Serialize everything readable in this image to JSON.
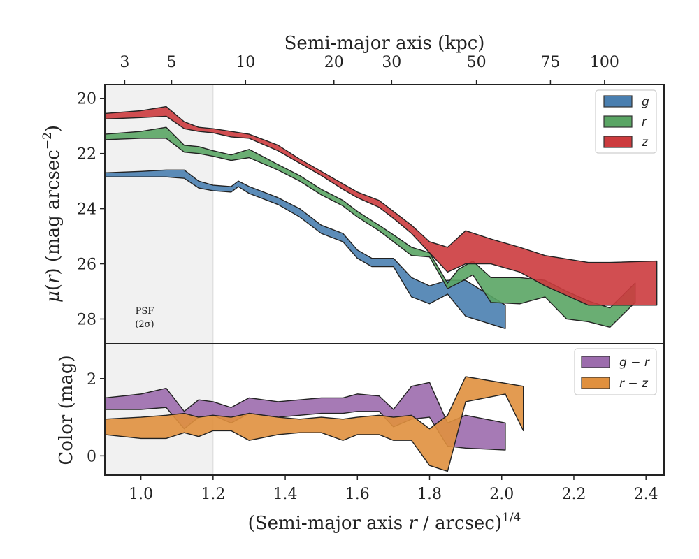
{
  "chart_data": [
    {
      "type": "area",
      "panel": "top",
      "xlabel_top": "Semi-major axis (kpc)",
      "top_ticks": [
        {
          "label": "3",
          "x": 0.955
        },
        {
          "label": "5",
          "x": 1.085
        },
        {
          "label": "10",
          "x": 1.29
        },
        {
          "label": "20",
          "x": 1.535
        },
        {
          "label": "30",
          "x": 1.695
        },
        {
          "label": "50",
          "x": 1.93
        },
        {
          "label": "75",
          "x": 2.135
        },
        {
          "label": "100",
          "x": 2.285
        }
      ],
      "ylabel": "μ(r) (mag arcsec⁻²)",
      "ylabel_parts": {
        "mu": "μ",
        "open": "(",
        "r": "r",
        "close": ") (mag arcsec",
        "exp": "−2",
        "end": ")"
      },
      "ylim": [
        28.9,
        19.5
      ],
      "yticks": [
        "20",
        "22",
        "24",
        "26",
        "28"
      ],
      "legend_position": "top-right",
      "psf_label": [
        "PSF",
        "(2σ)"
      ],
      "psf_region_x": [
        0.9,
        1.2
      ],
      "series": [
        {
          "name": "g",
          "color": "#4a7fb0",
          "upper": [
            [
              0.9,
              22.7
            ],
            [
              1.0,
              22.65
            ],
            [
              1.07,
              22.6
            ],
            [
              1.12,
              22.6
            ],
            [
              1.16,
              23.0
            ],
            [
              1.2,
              23.15
            ],
            [
              1.25,
              23.2
            ],
            [
              1.27,
              23.0
            ],
            [
              1.3,
              23.2
            ],
            [
              1.38,
              23.6
            ],
            [
              1.44,
              24.0
            ],
            [
              1.5,
              24.6
            ],
            [
              1.56,
              24.9
            ],
            [
              1.6,
              25.5
            ],
            [
              1.64,
              25.8
            ],
            [
              1.7,
              25.8
            ],
            [
              1.75,
              26.5
            ],
            [
              1.8,
              26.8
            ],
            [
              1.85,
              26.6
            ],
            [
              1.9,
              26.6
            ],
            [
              2.01,
              27.5
            ]
          ],
          "lower": [
            [
              0.9,
              22.85
            ],
            [
              1.0,
              22.85
            ],
            [
              1.07,
              22.85
            ],
            [
              1.12,
              22.9
            ],
            [
              1.16,
              23.25
            ],
            [
              1.2,
              23.35
            ],
            [
              1.25,
              23.4
            ],
            [
              1.27,
              23.2
            ],
            [
              1.3,
              23.45
            ],
            [
              1.38,
              23.85
            ],
            [
              1.44,
              24.3
            ],
            [
              1.5,
              24.9
            ],
            [
              1.56,
              25.2
            ],
            [
              1.6,
              25.8
            ],
            [
              1.64,
              26.1
            ],
            [
              1.7,
              26.1
            ],
            [
              1.75,
              27.2
            ],
            [
              1.8,
              27.45
            ],
            [
              1.85,
              27.1
            ],
            [
              1.9,
              27.9
            ],
            [
              2.01,
              28.35
            ]
          ]
        },
        {
          "name": "r",
          "color": "#5aa564",
          "upper": [
            [
              0.9,
              21.3
            ],
            [
              1.0,
              21.2
            ],
            [
              1.07,
              21.05
            ],
            [
              1.12,
              21.7
            ],
            [
              1.16,
              21.75
            ],
            [
              1.2,
              21.9
            ],
            [
              1.25,
              22.05
            ],
            [
              1.3,
              21.85
            ],
            [
              1.38,
              22.4
            ],
            [
              1.44,
              22.8
            ],
            [
              1.5,
              23.3
            ],
            [
              1.56,
              23.7
            ],
            [
              1.6,
              24.1
            ],
            [
              1.66,
              24.6
            ],
            [
              1.7,
              24.95
            ],
            [
              1.75,
              25.4
            ],
            [
              1.8,
              25.6
            ],
            [
              1.85,
              26.7
            ],
            [
              1.88,
              26.2
            ],
            [
              1.92,
              25.9
            ],
            [
              1.97,
              26.5
            ],
            [
              2.05,
              26.5
            ],
            [
              2.12,
              26.6
            ],
            [
              2.18,
              27.0
            ],
            [
              2.24,
              27.35
            ],
            [
              2.3,
              27.6
            ],
            [
              2.37,
              26.7
            ]
          ],
          "lower": [
            [
              0.9,
              21.5
            ],
            [
              1.0,
              21.45
            ],
            [
              1.07,
              21.45
            ],
            [
              1.12,
              21.95
            ],
            [
              1.16,
              22.0
            ],
            [
              1.2,
              22.1
            ],
            [
              1.25,
              22.25
            ],
            [
              1.3,
              22.15
            ],
            [
              1.38,
              22.6
            ],
            [
              1.44,
              23.0
            ],
            [
              1.5,
              23.5
            ],
            [
              1.56,
              23.9
            ],
            [
              1.6,
              24.3
            ],
            [
              1.66,
              24.8
            ],
            [
              1.7,
              25.2
            ],
            [
              1.75,
              25.7
            ],
            [
              1.8,
              25.75
            ],
            [
              1.85,
              26.9
            ],
            [
              1.88,
              26.7
            ],
            [
              1.92,
              26.4
            ],
            [
              1.97,
              27.4
            ],
            [
              2.05,
              27.45
            ],
            [
              2.12,
              27.2
            ],
            [
              2.18,
              28.0
            ],
            [
              2.24,
              28.1
            ],
            [
              2.3,
              28.3
            ],
            [
              2.37,
              27.4
            ]
          ]
        },
        {
          "name": "z",
          "color": "#cc3b3e",
          "upper": [
            [
              0.9,
              20.55
            ],
            [
              1.0,
              20.45
            ],
            [
              1.07,
              20.3
            ],
            [
              1.12,
              20.85
            ],
            [
              1.16,
              21.05
            ],
            [
              1.2,
              21.1
            ],
            [
              1.25,
              21.2
            ],
            [
              1.3,
              21.3
            ],
            [
              1.38,
              21.7
            ],
            [
              1.44,
              22.2
            ],
            [
              1.5,
              22.65
            ],
            [
              1.56,
              23.1
            ],
            [
              1.6,
              23.4
            ],
            [
              1.66,
              23.7
            ],
            [
              1.7,
              24.1
            ],
            [
              1.75,
              24.6
            ],
            [
              1.8,
              25.2
            ],
            [
              1.85,
              25.4
            ],
            [
              1.9,
              24.8
            ],
            [
              1.97,
              25.1
            ],
            [
              2.05,
              25.4
            ],
            [
              2.12,
              25.7
            ],
            [
              2.24,
              25.95
            ],
            [
              2.3,
              25.95
            ],
            [
              2.43,
              25.9
            ]
          ],
          "lower": [
            [
              0.9,
              20.75
            ],
            [
              1.0,
              20.7
            ],
            [
              1.07,
              20.65
            ],
            [
              1.12,
              21.1
            ],
            [
              1.16,
              21.2
            ],
            [
              1.2,
              21.25
            ],
            [
              1.25,
              21.4
            ],
            [
              1.3,
              21.45
            ],
            [
              1.38,
              21.9
            ],
            [
              1.44,
              22.35
            ],
            [
              1.5,
              22.8
            ],
            [
              1.56,
              23.3
            ],
            [
              1.6,
              23.6
            ],
            [
              1.66,
              23.95
            ],
            [
              1.7,
              24.35
            ],
            [
              1.75,
              24.9
            ],
            [
              1.8,
              25.6
            ],
            [
              1.85,
              26.3
            ],
            [
              1.9,
              26.0
            ],
            [
              1.97,
              26.0
            ],
            [
              2.05,
              26.3
            ],
            [
              2.12,
              26.8
            ],
            [
              2.24,
              27.5
            ],
            [
              2.3,
              27.5
            ],
            [
              2.43,
              27.5
            ]
          ]
        }
      ]
    },
    {
      "type": "area",
      "panel": "bottom",
      "ylabel": "Color (mag)",
      "xlabel": "(Semi-major axis r / arcsec)1/4",
      "xlabel_parts": {
        "a": "(Semi-major axis ",
        "r": "r",
        "b": " / arcsec)",
        "exp": "1/4"
      },
      "xlim": [
        0.9,
        2.45
      ],
      "xticks": [
        "1.0",
        "1.2",
        "1.4",
        "1.6",
        "1.8",
        "2.0",
        "2.2",
        "2.4"
      ],
      "ylim": [
        -0.5,
        2.9
      ],
      "yticks": [
        "0",
        "2"
      ],
      "legend_position": "top-right",
      "series": [
        {
          "name": "g − r",
          "color": "#9c6cad",
          "upper": [
            [
              0.9,
              1.5
            ],
            [
              0.95,
              1.55
            ],
            [
              1.0,
              1.6
            ],
            [
              1.07,
              1.75
            ],
            [
              1.12,
              1.15
            ],
            [
              1.16,
              1.45
            ],
            [
              1.2,
              1.4
            ],
            [
              1.25,
              1.25
            ],
            [
              1.3,
              1.5
            ],
            [
              1.38,
              1.4
            ],
            [
              1.44,
              1.45
            ],
            [
              1.5,
              1.5
            ],
            [
              1.56,
              1.5
            ],
            [
              1.6,
              1.6
            ],
            [
              1.66,
              1.55
            ],
            [
              1.7,
              1.2
            ],
            [
              1.75,
              1.8
            ],
            [
              1.8,
              1.9
            ],
            [
              1.85,
              0.85
            ],
            [
              1.9,
              1.05
            ],
            [
              2.01,
              0.85
            ]
          ],
          "lower": [
            [
              0.9,
              1.2
            ],
            [
              0.95,
              1.2
            ],
            [
              1.0,
              1.2
            ],
            [
              1.07,
              1.25
            ],
            [
              1.12,
              0.7
            ],
            [
              1.16,
              1.0
            ],
            [
              1.2,
              1.05
            ],
            [
              1.25,
              0.85
            ],
            [
              1.3,
              1.1
            ],
            [
              1.38,
              1.0
            ],
            [
              1.44,
              1.05
            ],
            [
              1.5,
              1.1
            ],
            [
              1.56,
              1.1
            ],
            [
              1.6,
              1.15
            ],
            [
              1.66,
              1.15
            ],
            [
              1.7,
              0.75
            ],
            [
              1.75,
              0.95
            ],
            [
              1.8,
              1.0
            ],
            [
              1.85,
              0.25
            ],
            [
              1.9,
              0.2
            ],
            [
              2.01,
              0.15
            ]
          ]
        },
        {
          "name": "r − z",
          "color": "#e0903e",
          "upper": [
            [
              0.9,
              0.95
            ],
            [
              1.0,
              1.0
            ],
            [
              1.07,
              1.05
            ],
            [
              1.12,
              1.1
            ],
            [
              1.16,
              1.0
            ],
            [
              1.2,
              1.05
            ],
            [
              1.25,
              1.0
            ],
            [
              1.3,
              1.1
            ],
            [
              1.38,
              1.0
            ],
            [
              1.44,
              0.95
            ],
            [
              1.5,
              1.0
            ],
            [
              1.56,
              0.95
            ],
            [
              1.6,
              1.0
            ],
            [
              1.66,
              1.05
            ],
            [
              1.7,
              1.0
            ],
            [
              1.75,
              1.05
            ],
            [
              1.8,
              0.7
            ],
            [
              1.85,
              1.05
            ],
            [
              1.9,
              2.05
            ],
            [
              2.06,
              1.8
            ]
          ],
          "lower": [
            [
              0.9,
              0.55
            ],
            [
              1.0,
              0.45
            ],
            [
              1.07,
              0.45
            ],
            [
              1.12,
              0.6
            ],
            [
              1.16,
              0.5
            ],
            [
              1.2,
              0.65
            ],
            [
              1.25,
              0.65
            ],
            [
              1.3,
              0.4
            ],
            [
              1.38,
              0.55
            ],
            [
              1.44,
              0.6
            ],
            [
              1.5,
              0.6
            ],
            [
              1.56,
              0.4
            ],
            [
              1.6,
              0.55
            ],
            [
              1.66,
              0.55
            ],
            [
              1.7,
              0.4
            ],
            [
              1.75,
              0.4
            ],
            [
              1.8,
              -0.25
            ],
            [
              1.85,
              -0.4
            ],
            [
              1.9,
              1.4
            ],
            [
              2.01,
              1.6
            ],
            [
              2.06,
              0.65
            ]
          ]
        }
      ]
    }
  ]
}
